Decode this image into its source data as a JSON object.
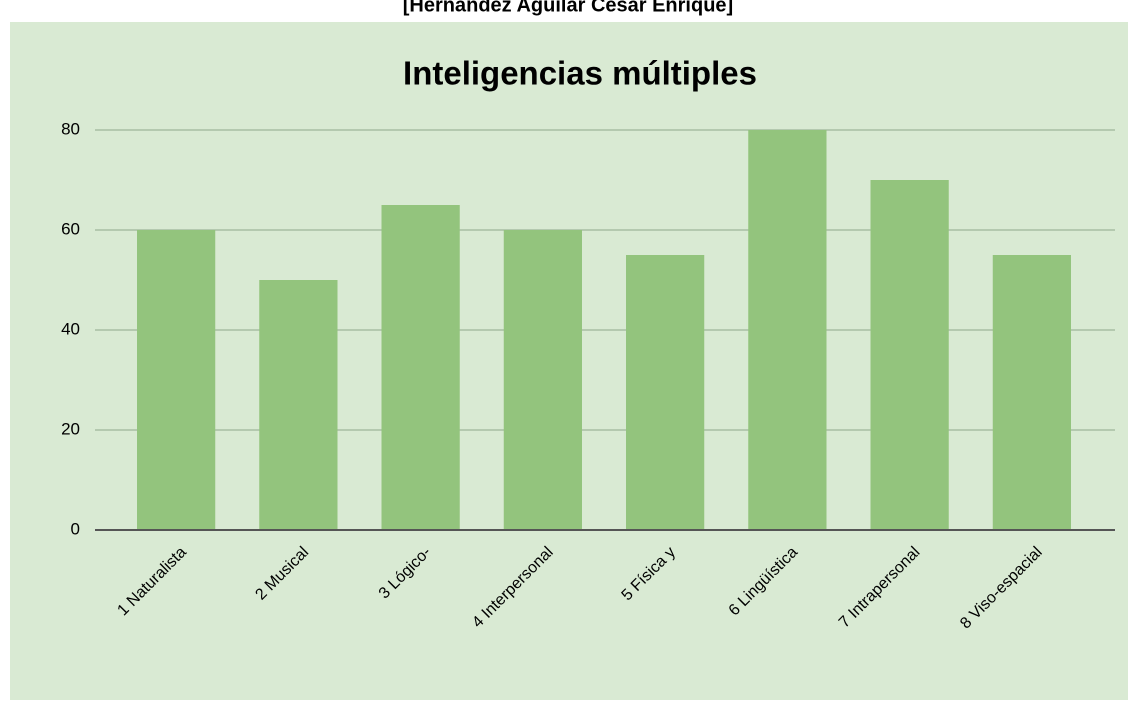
{
  "header": {
    "text": "[Hernández Aguilar César Enrique]"
  },
  "chart_data": {
    "type": "bar",
    "title": "Inteligencias múltiples",
    "categories": [
      "1 Naturalista",
      "2 Musical",
      "3 Lógico-",
      "4 Interpersonal",
      "5 Física y",
      "6 Lingüística",
      "7 Intrapersonal",
      "8 Viso-espacial"
    ],
    "values": [
      60,
      50,
      65,
      60,
      55,
      80,
      70,
      55
    ],
    "color": "#93c47d",
    "ylim": [
      0,
      80
    ],
    "yticks": [
      0,
      20,
      40,
      60,
      80
    ],
    "grid": true
  }
}
